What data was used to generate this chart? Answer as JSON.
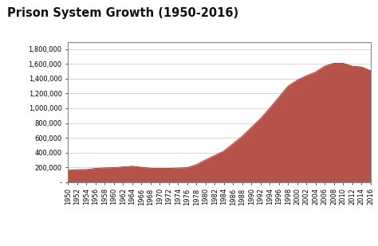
{
  "title": "Prison System Growth (1950-2016)",
  "fill_color": "#b5534a",
  "line_color": "#7a3530",
  "background_color": "#ffffff",
  "plot_bg_color": "#ffffff",
  "years": [
    1950,
    1952,
    1954,
    1956,
    1958,
    1960,
    1962,
    1964,
    1966,
    1968,
    1970,
    1972,
    1974,
    1976,
    1978,
    1980,
    1982,
    1984,
    1986,
    1988,
    1990,
    1992,
    1994,
    1996,
    1998,
    2000,
    2002,
    2004,
    2006,
    2008,
    2010,
    2012,
    2014,
    2016
  ],
  "values": [
    160000,
    168000,
    170000,
    185000,
    192000,
    195000,
    205000,
    215000,
    200000,
    188000,
    185000,
    185000,
    190000,
    195000,
    235000,
    300000,
    360000,
    420000,
    520000,
    620000,
    740000,
    860000,
    1000000,
    1150000,
    1300000,
    1380000,
    1440000,
    1490000,
    1570000,
    1610000,
    1610000,
    1570000,
    1560000,
    1510000
  ],
  "ylim": [
    0,
    1900000
  ],
  "yticks": [
    0,
    200000,
    400000,
    600000,
    800000,
    1000000,
    1200000,
    1400000,
    1600000,
    1800000
  ],
  "ytick_labels": [
    "-",
    "200,000",
    "400,000",
    "600,000",
    "800,000",
    "1,000,000",
    "1,200,000",
    "1,400,000",
    "1,600,000",
    "1,800,000"
  ],
  "grid_color": "#c8c8c8",
  "title_fontsize": 10.5,
  "tick_fontsize": 6.0,
  "border_color": "#888888"
}
